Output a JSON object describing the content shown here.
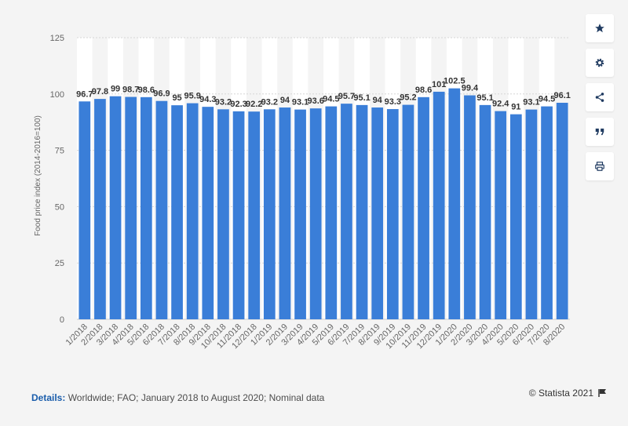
{
  "chart_data": {
    "type": "bar",
    "title": "",
    "xlabel": "",
    "ylabel": "Food price index (2014-2016=100)",
    "ylim": [
      0,
      125
    ],
    "yticks": [
      0,
      25,
      50,
      75,
      100,
      125
    ],
    "grid": true,
    "bar_color": "#3a7ed8",
    "categories": [
      "1/2018",
      "2/2018",
      "3/2018",
      "4/2018",
      "5/2018",
      "6/2018",
      "7/2018",
      "8/2018",
      "9/2018",
      "10/2018",
      "11/2018",
      "12/2018",
      "1/2019",
      "2/2019",
      "3/2019",
      "4/2019",
      "5/2019",
      "6/2019",
      "7/2019",
      "8/2019",
      "9/2019",
      "10/2019",
      "11/2019",
      "12/2019",
      "1/2020",
      "2/2020",
      "3/2020",
      "4/2020",
      "5/2020",
      "6/2020",
      "7/2020",
      "8/2020"
    ],
    "values": [
      96.7,
      97.8,
      99,
      98.7,
      98.6,
      96.9,
      95,
      95.9,
      94.3,
      93.2,
      92.3,
      92.2,
      93.2,
      94,
      93.1,
      93.6,
      94.5,
      95.7,
      95.1,
      94,
      93.3,
      95.2,
      98.6,
      101,
      102.5,
      99.4,
      95.1,
      92.4,
      91,
      93.1,
      94.5,
      96.1
    ],
    "value_labels": [
      "96.7",
      "97.8",
      "99",
      "98.7",
      "98.6",
      "96.9",
      "95",
      "95.9",
      "94.3",
      "93.2",
      "92.3",
      "92.2",
      "93.2",
      "94",
      "93.1",
      "93.6",
      "94.5",
      "95.7",
      "95.1",
      "94",
      "93.3",
      "95.2",
      "98.6",
      "101",
      "102.5",
      "99.4",
      "95.1",
      "92.4",
      "91",
      "93.1",
      "94.5",
      "96.1"
    ]
  },
  "sidebar": {
    "buttons": [
      {
        "icon": "star-icon",
        "name": "favorite-button"
      },
      {
        "icon": "gear-icon",
        "name": "settings-button"
      },
      {
        "icon": "share-icon",
        "name": "share-button"
      },
      {
        "icon": "quote-icon",
        "name": "cite-button"
      },
      {
        "icon": "print-icon",
        "name": "print-button"
      }
    ]
  },
  "footer": {
    "details_label": "Details:",
    "details_text": " Worldwide; FAO; January 2018 to August 2020; Nominal data",
    "credit": "© Statista 2021"
  },
  "colors": {
    "accent": "#1a5dab",
    "bar": "#3a7ed8",
    "background": "#f4f4f4"
  }
}
